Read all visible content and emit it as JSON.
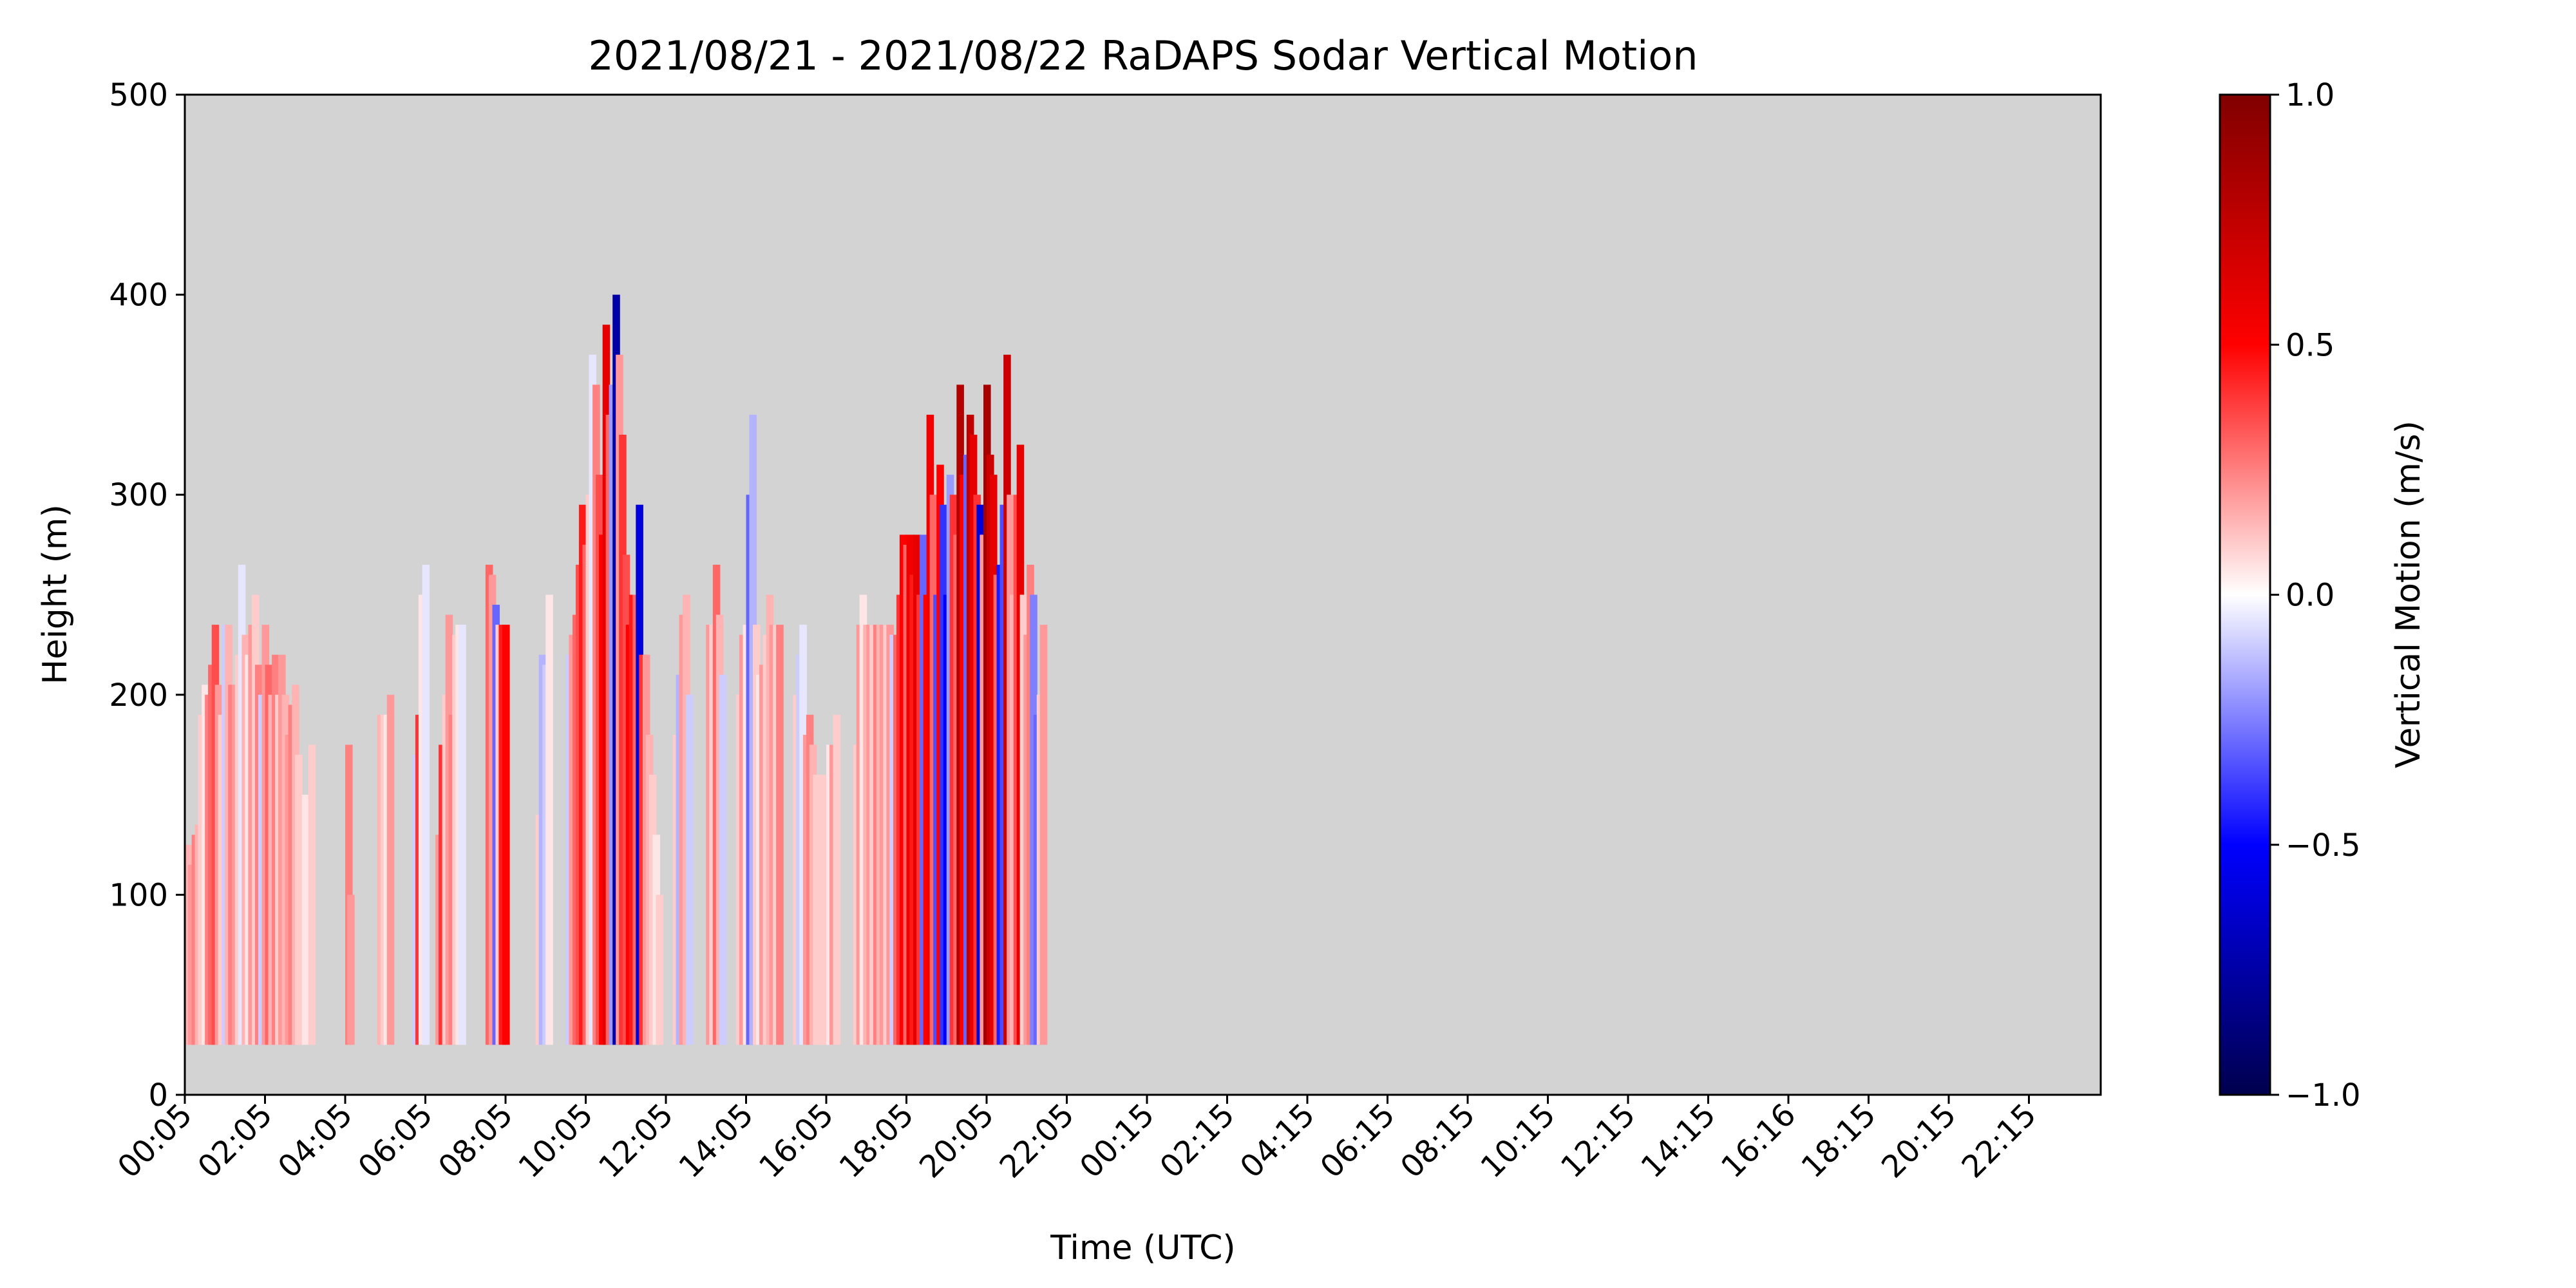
{
  "chart_data": {
    "type": "heatmap",
    "title": "2021/08/21 - 2021/08/22 RaDAPS Sodar Vertical Motion",
    "xlabel": "Time (UTC)",
    "ylabel": "Height (m)",
    "ylim": [
      0,
      500
    ],
    "yticks": [
      "0",
      "100",
      "200",
      "300",
      "400",
      "500"
    ],
    "xticks": [
      "00:05",
      "02:05",
      "04:05",
      "06:05",
      "08:05",
      "10:05",
      "12:05",
      "14:05",
      "16:05",
      "18:05",
      "20:05",
      "22:05",
      "00:15",
      "02:15",
      "04:15",
      "06:15",
      "08:15",
      "10:15",
      "12:15",
      "14:15",
      "16:16",
      "18:15",
      "20:15",
      "22:15"
    ],
    "grid": false,
    "background_color": "#d3d3d3",
    "colorbar": {
      "label": "Vertical Motion (m/s)",
      "range": [
        -1.0,
        1.0
      ],
      "ticks": [
        "−1.0",
        "−0.5",
        "0.0",
        "0.5",
        "1.0"
      ],
      "colormap": "seismic"
    },
    "profile_base_height_m": 25,
    "profiles": [
      {
        "t": 0.0,
        "top": 125,
        "w": 0.15
      },
      {
        "t": 0.08,
        "top": 115,
        "w": 0.2
      },
      {
        "t": 0.17,
        "top": 130,
        "w": 0.25
      },
      {
        "t": 0.25,
        "top": 135,
        "w": 0.15
      },
      {
        "t": 0.33,
        "top": 190,
        "w": 0.1
      },
      {
        "t": 0.42,
        "top": 205,
        "w": 0.05
      },
      {
        "t": 0.5,
        "top": 200,
        "w": 0.25
      },
      {
        "t": 0.58,
        "top": 215,
        "w": 0.3
      },
      {
        "t": 0.67,
        "top": 235,
        "w": 0.35
      },
      {
        "t": 0.75,
        "top": 205,
        "w": 0.2
      },
      {
        "t": 0.83,
        "top": 190,
        "w": 0.1
      },
      {
        "t": 0.92,
        "top": 235,
        "w": -0.1
      },
      {
        "t": 1.0,
        "top": 235,
        "w": 0.15
      },
      {
        "t": 1.08,
        "top": 205,
        "w": 0.25
      },
      {
        "t": 1.17,
        "top": 205,
        "w": 0.2
      },
      {
        "t": 1.25,
        "top": 220,
        "w": 0.1
      },
      {
        "t": 1.33,
        "top": 265,
        "w": -0.05
      },
      {
        "t": 1.42,
        "top": 230,
        "w": 0.15
      },
      {
        "t": 1.5,
        "top": 220,
        "w": 0.05
      },
      {
        "t": 1.58,
        "top": 235,
        "w": 0.2
      },
      {
        "t": 1.67,
        "top": 250,
        "w": 0.1
      },
      {
        "t": 1.75,
        "top": 215,
        "w": 0.25
      },
      {
        "t": 1.83,
        "top": 200,
        "w": -0.1
      },
      {
        "t": 1.92,
        "top": 235,
        "w": 0.2
      },
      {
        "t": 2.0,
        "top": 215,
        "w": 0.3
      },
      {
        "t": 2.08,
        "top": 200,
        "w": 0.15
      },
      {
        "t": 2.17,
        "top": 220,
        "w": 0.25
      },
      {
        "t": 2.25,
        "top": 200,
        "w": 0.1
      },
      {
        "t": 2.33,
        "top": 220,
        "w": 0.2
      },
      {
        "t": 2.42,
        "top": 200,
        "w": 0.15
      },
      {
        "t": 2.5,
        "top": 180,
        "w": 0.2
      },
      {
        "t": 2.58,
        "top": 195,
        "w": 0.25
      },
      {
        "t": 2.67,
        "top": 205,
        "w": 0.15
      },
      {
        "t": 2.75,
        "top": 170,
        "w": 0.1
      },
      {
        "t": 2.92,
        "top": 150,
        "w": 0.05
      },
      {
        "t": 3.08,
        "top": 175,
        "w": 0.1
      },
      {
        "t": 4.0,
        "top": 175,
        "w": 0.25
      },
      {
        "t": 4.05,
        "top": 100,
        "w": 0.2
      },
      {
        "t": 4.8,
        "top": 190,
        "w": 0.15
      },
      {
        "t": 4.88,
        "top": 190,
        "w": 0.1
      },
      {
        "t": 4.96,
        "top": 190,
        "w": 0.05
      },
      {
        "t": 5.04,
        "top": 200,
        "w": 0.2
      },
      {
        "t": 5.67,
        "top": 170,
        "w": -0.1
      },
      {
        "t": 5.75,
        "top": 190,
        "w": 0.4
      },
      {
        "t": 5.83,
        "top": 250,
        "w": 0.05
      },
      {
        "t": 5.92,
        "top": 265,
        "w": -0.05
      },
      {
        "t": 6.25,
        "top": 130,
        "w": 0.2
      },
      {
        "t": 6.33,
        "top": 175,
        "w": 0.4
      },
      {
        "t": 6.42,
        "top": 200,
        "w": 0.1
      },
      {
        "t": 6.5,
        "top": 240,
        "w": 0.2
      },
      {
        "t": 6.58,
        "top": 190,
        "w": 0.25
      },
      {
        "t": 6.67,
        "top": 230,
        "w": 0.1
      },
      {
        "t": 6.75,
        "top": 235,
        "w": 0.05
      },
      {
        "t": 6.83,
        "top": 235,
        "w": -0.05
      },
      {
        "t": 7.5,
        "top": 265,
        "w": 0.3
      },
      {
        "t": 7.58,
        "top": 260,
        "w": 0.2
      },
      {
        "t": 7.67,
        "top": 245,
        "w": -0.3
      },
      {
        "t": 7.75,
        "top": 235,
        "w": 0.1
      },
      {
        "t": 7.83,
        "top": 235,
        "w": 0.45
      },
      {
        "t": 7.92,
        "top": 235,
        "w": 0.5
      },
      {
        "t": 8.75,
        "top": 140,
        "w": 0.1
      },
      {
        "t": 8.83,
        "top": 220,
        "w": -0.15
      },
      {
        "t": 8.92,
        "top": 215,
        "w": -0.1
      },
      {
        "t": 9.0,
        "top": 250,
        "w": 0.05
      },
      {
        "t": 9.5,
        "top": 220,
        "w": -0.1
      },
      {
        "t": 9.58,
        "top": 230,
        "w": 0.2
      },
      {
        "t": 9.67,
        "top": 240,
        "w": 0.3
      },
      {
        "t": 9.75,
        "top": 265,
        "w": 0.35
      },
      {
        "t": 9.83,
        "top": 295,
        "w": 0.45
      },
      {
        "t": 9.92,
        "top": 275,
        "w": 0.3
      },
      {
        "t": 10.0,
        "top": 300,
        "w": 0.1
      },
      {
        "t": 10.08,
        "top": 370,
        "w": -0.05
      },
      {
        "t": 10.17,
        "top": 355,
        "w": 0.25
      },
      {
        "t": 10.25,
        "top": 310,
        "w": 0.35
      },
      {
        "t": 10.33,
        "top": 280,
        "w": 0.5
      },
      {
        "t": 10.42,
        "top": 385,
        "w": 0.6
      },
      {
        "t": 10.5,
        "top": 340,
        "w": 0.3
      },
      {
        "t": 10.58,
        "top": 355,
        "w": -0.2
      },
      {
        "t": 10.67,
        "top": 400,
        "w": -0.75
      },
      {
        "t": 10.75,
        "top": 370,
        "w": 0.2
      },
      {
        "t": 10.83,
        "top": 330,
        "w": 0.4
      },
      {
        "t": 10.92,
        "top": 270,
        "w": 0.35
      },
      {
        "t": 11.0,
        "top": 235,
        "w": 0.5
      },
      {
        "t": 11.08,
        "top": 250,
        "w": 0.45
      },
      {
        "t": 11.17,
        "top": 250,
        "w": 0.3
      },
      {
        "t": 11.25,
        "top": 295,
        "w": -0.6
      },
      {
        "t": 11.33,
        "top": 220,
        "w": 0.4
      },
      {
        "t": 11.42,
        "top": 220,
        "w": 0.2
      },
      {
        "t": 11.5,
        "top": 180,
        "w": 0.15
      },
      {
        "t": 11.58,
        "top": 160,
        "w": 0.1
      },
      {
        "t": 11.67,
        "top": 130,
        "w": 0.05
      },
      {
        "t": 11.75,
        "top": 100,
        "w": 0.1
      },
      {
        "t": 12.17,
        "top": 180,
        "w": 0.1
      },
      {
        "t": 12.25,
        "top": 210,
        "w": -0.15
      },
      {
        "t": 12.33,
        "top": 240,
        "w": 0.2
      },
      {
        "t": 12.42,
        "top": 250,
        "w": 0.15
      },
      {
        "t": 12.5,
        "top": 200,
        "w": -0.1
      },
      {
        "t": 13.0,
        "top": 235,
        "w": 0.2
      },
      {
        "t": 13.08,
        "top": 235,
        "w": 0.1
      },
      {
        "t": 13.17,
        "top": 265,
        "w": 0.3
      },
      {
        "t": 13.25,
        "top": 240,
        "w": 0.15
      },
      {
        "t": 13.33,
        "top": 210,
        "w": -0.1
      },
      {
        "t": 13.75,
        "top": 200,
        "w": 0.1
      },
      {
        "t": 13.83,
        "top": 230,
        "w": 0.2
      },
      {
        "t": 13.92,
        "top": 235,
        "w": 0.05
      },
      {
        "t": 14.0,
        "top": 300,
        "w": -0.3
      },
      {
        "t": 14.08,
        "top": 340,
        "w": -0.15
      },
      {
        "t": 14.17,
        "top": 235,
        "w": 0.1
      },
      {
        "t": 14.25,
        "top": 210,
        "w": 0.05
      },
      {
        "t": 14.33,
        "top": 215,
        "w": 0.2
      },
      {
        "t": 14.42,
        "top": 230,
        "w": 0.1
      },
      {
        "t": 14.5,
        "top": 250,
        "w": 0.15
      },
      {
        "t": 14.58,
        "top": 235,
        "w": 0.2
      },
      {
        "t": 14.67,
        "top": 235,
        "w": 0.1
      },
      {
        "t": 14.75,
        "top": 235,
        "w": 0.25
      },
      {
        "t": 15.17,
        "top": 200,
        "w": 0.1
      },
      {
        "t": 15.25,
        "top": 220,
        "w": -0.1
      },
      {
        "t": 15.33,
        "top": 235,
        "w": -0.05
      },
      {
        "t": 15.42,
        "top": 180,
        "w": 0.2
      },
      {
        "t": 15.5,
        "top": 190,
        "w": 0.25
      },
      {
        "t": 15.58,
        "top": 175,
        "w": 0.15
      },
      {
        "t": 15.67,
        "top": 160,
        "w": 0.1
      },
      {
        "t": 15.83,
        "top": 160,
        "w": 0.1
      },
      {
        "t": 16.0,
        "top": 175,
        "w": 0.05
      },
      {
        "t": 16.08,
        "top": 175,
        "w": 0.2
      },
      {
        "t": 16.17,
        "top": 190,
        "w": 0.1
      },
      {
        "t": 16.67,
        "top": 175,
        "w": 0.1
      },
      {
        "t": 16.75,
        "top": 235,
        "w": 0.2
      },
      {
        "t": 16.83,
        "top": 250,
        "w": 0.05
      },
      {
        "t": 16.92,
        "top": 235,
        "w": 0.15
      },
      {
        "t": 17.0,
        "top": 235,
        "w": 0.2
      },
      {
        "t": 17.08,
        "top": 235,
        "w": 0.1
      },
      {
        "t": 17.17,
        "top": 235,
        "w": 0.25
      },
      {
        "t": 17.25,
        "top": 235,
        "w": 0.15
      },
      {
        "t": 17.33,
        "top": 235,
        "w": 0.2
      },
      {
        "t": 17.42,
        "top": 235,
        "w": 0.1
      },
      {
        "t": 17.5,
        "top": 235,
        "w": 0.2
      },
      {
        "t": 17.58,
        "top": 230,
        "w": -0.1
      },
      {
        "t": 17.67,
        "top": 230,
        "w": 0.3
      },
      {
        "t": 17.75,
        "top": 250,
        "w": 0.4
      },
      {
        "t": 17.83,
        "top": 280,
        "w": 0.5
      },
      {
        "t": 17.92,
        "top": 275,
        "w": 0.3
      },
      {
        "t": 18.0,
        "top": 280,
        "w": 0.55
      },
      {
        "t": 18.08,
        "top": 260,
        "w": 0.45
      },
      {
        "t": 18.17,
        "top": 280,
        "w": 0.6
      },
      {
        "t": 18.25,
        "top": 250,
        "w": 0.4
      },
      {
        "t": 18.33,
        "top": 280,
        "w": -0.3
      },
      {
        "t": 18.42,
        "top": 250,
        "w": 0.5
      },
      {
        "t": 18.5,
        "top": 340,
        "w": 0.55
      },
      {
        "t": 18.58,
        "top": 300,
        "w": 0.3
      },
      {
        "t": 18.67,
        "top": 250,
        "w": -0.35
      },
      {
        "t": 18.75,
        "top": 315,
        "w": 0.5
      },
      {
        "t": 18.83,
        "top": 295,
        "w": -0.4
      },
      {
        "t": 18.92,
        "top": 250,
        "w": -0.5
      },
      {
        "t": 19.0,
        "top": 310,
        "w": -0.2
      },
      {
        "t": 19.08,
        "top": 300,
        "w": 0.4
      },
      {
        "t": 19.17,
        "top": 280,
        "w": 0.3
      },
      {
        "t": 19.25,
        "top": 355,
        "w": 0.8
      },
      {
        "t": 19.33,
        "top": 310,
        "w": 0.5
      },
      {
        "t": 19.42,
        "top": 320,
        "w": -0.3
      },
      {
        "t": 19.5,
        "top": 340,
        "w": 0.75
      },
      {
        "t": 19.58,
        "top": 330,
        "w": 0.6
      },
      {
        "t": 19.67,
        "top": 300,
        "w": 0.4
      },
      {
        "t": 19.75,
        "top": 295,
        "w": -0.6
      },
      {
        "t": 19.83,
        "top": 280,
        "w": 0.2
      },
      {
        "t": 19.92,
        "top": 355,
        "w": 0.85
      },
      {
        "t": 20.0,
        "top": 320,
        "w": 0.7
      },
      {
        "t": 20.08,
        "top": 310,
        "w": 0.6
      },
      {
        "t": 20.17,
        "top": 260,
        "w": 0.3
      },
      {
        "t": 20.25,
        "top": 265,
        "w": -0.45
      },
      {
        "t": 20.33,
        "top": 295,
        "w": -0.35
      },
      {
        "t": 20.42,
        "top": 370,
        "w": 0.7
      },
      {
        "t": 20.5,
        "top": 300,
        "w": 0.2
      },
      {
        "t": 20.58,
        "top": 250,
        "w": 0.15
      },
      {
        "t": 20.67,
        "top": 300,
        "w": 0.35
      },
      {
        "t": 20.75,
        "top": 325,
        "w": 0.6
      },
      {
        "t": 20.83,
        "top": 250,
        "w": 0.1
      },
      {
        "t": 20.92,
        "top": 230,
        "w": 0.2
      },
      {
        "t": 21.0,
        "top": 265,
        "w": 0.25
      },
      {
        "t": 21.08,
        "top": 250,
        "w": -0.25
      },
      {
        "t": 21.17,
        "top": 190,
        "w": -0.3
      },
      {
        "t": 21.25,
        "top": 200,
        "w": 0.1
      },
      {
        "t": 21.33,
        "top": 235,
        "w": 0.2
      }
    ]
  }
}
